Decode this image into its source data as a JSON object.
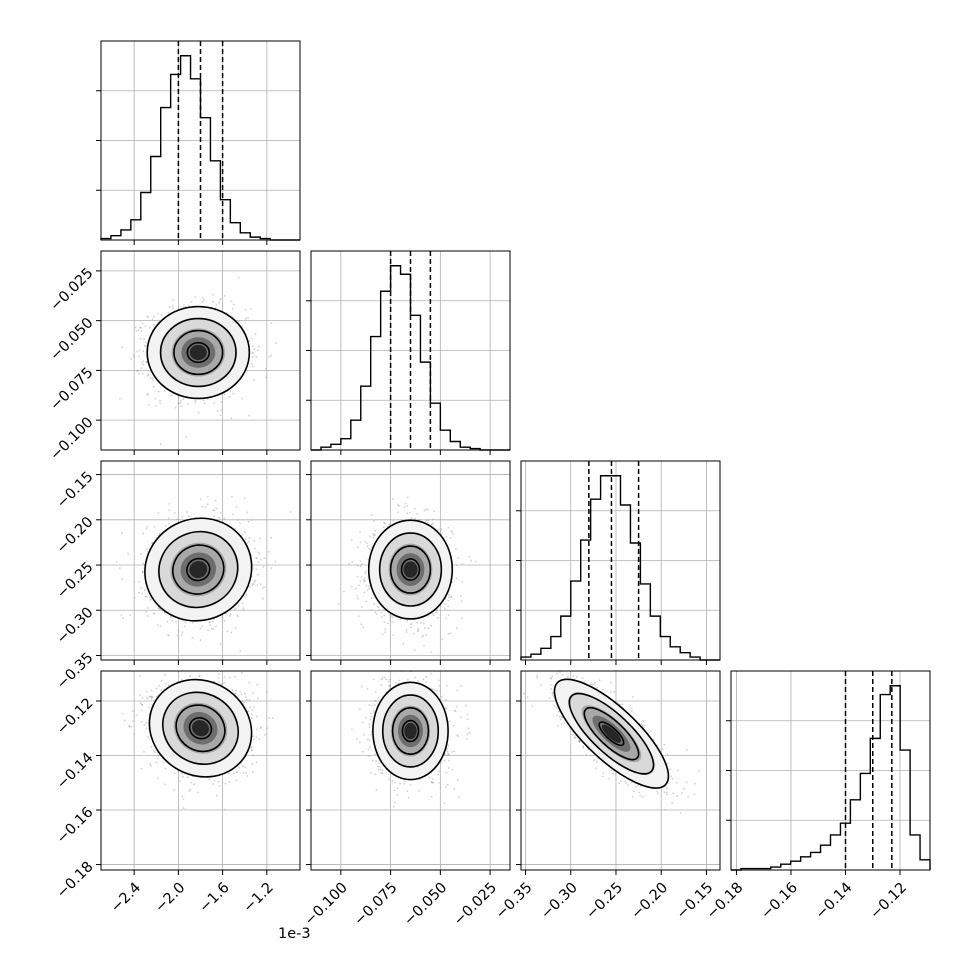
{
  "chart_data": {
    "type": "corner",
    "grid": true,
    "scatter_color": "#9a9a9a",
    "line_color": "#000000",
    "x_offset_label": "1e-3",
    "params": [
      {
        "range": [
          -2.7,
          -0.9
        ],
        "ticks": [
          -2.4,
          -2.0,
          -1.6,
          -1.2
        ],
        "tick_labels": [
          "−2.4",
          "−2.0",
          "−1.6",
          "−1.2"
        ],
        "quantiles": [
          -2.0,
          -1.8,
          -1.6
        ],
        "hist": [
          1,
          3,
          7,
          14,
          33,
          58,
          92,
          115,
          128,
          112,
          85,
          55,
          28,
          12,
          5,
          2,
          1,
          0,
          0,
          0
        ]
      },
      {
        "range": [
          -0.115,
          -0.015
        ],
        "ticks": [
          -0.1,
          -0.075,
          -0.05,
          -0.025
        ],
        "tick_labels": [
          "−0.100",
          "−0.075",
          "−0.050",
          "−0.025"
        ],
        "quantiles": [
          -0.075,
          -0.065,
          -0.055
        ],
        "hist": [
          0,
          2,
          4,
          8,
          21,
          45,
          80,
          112,
          130,
          124,
          95,
          62,
          33,
          14,
          6,
          2,
          1,
          0,
          0,
          0
        ]
      },
      {
        "range": [
          -0.355,
          -0.135
        ],
        "ticks": [
          -0.35,
          -0.3,
          -0.25,
          -0.2,
          -0.15
        ],
        "tick_labels": [
          "−0.35",
          "−0.30",
          "−0.25",
          "−0.20",
          "−0.15"
        ],
        "quantiles": [
          -0.28,
          -0.255,
          -0.225
        ],
        "hist": [
          2,
          4,
          8,
          16,
          30,
          54,
          82,
          110,
          126,
          126,
          106,
          80,
          52,
          30,
          16,
          9,
          5,
          2,
          0,
          0
        ]
      },
      {
        "range": [
          -0.182,
          -0.109
        ],
        "ticks": [
          -0.18,
          -0.16,
          -0.14,
          -0.12
        ],
        "tick_labels": [
          "−0.18",
          "−0.16",
          "−0.14",
          "−0.12"
        ],
        "quantiles": [
          -0.14,
          -0.13,
          -0.123
        ],
        "hist": [
          0,
          1,
          1,
          1,
          2,
          4,
          6,
          9,
          12,
          17,
          24,
          32,
          48,
          66,
          90,
          120,
          126,
          82,
          24,
          7
        ]
      }
    ],
    "pairs": [
      {
        "row": 1,
        "col": 0,
        "mean": [
          -1.82,
          -0.066
        ],
        "sd": [
          0.22,
          0.011
        ],
        "rho": 0.0
      },
      {
        "row": 2,
        "col": 0,
        "mean": [
          -1.82,
          -0.255
        ],
        "sd": [
          0.23,
          0.027
        ],
        "rho": 0.05
      },
      {
        "row": 2,
        "col": 1,
        "mean": [
          -0.065,
          -0.255
        ],
        "sd": [
          0.01,
          0.026
        ],
        "rho": 0.0
      },
      {
        "row": 3,
        "col": 0,
        "mean": [
          -1.8,
          -0.13
        ],
        "sd": [
          0.22,
          0.0085
        ],
        "rho": -0.1
      },
      {
        "row": 3,
        "col": 1,
        "mean": [
          -0.065,
          -0.131
        ],
        "sd": [
          0.009,
          0.0085
        ],
        "rho": 0.0
      },
      {
        "row": 3,
        "col": 2,
        "mean": [
          -0.255,
          -0.132
        ],
        "sd": [
          0.03,
          0.0095
        ],
        "rho": -0.78
      }
    ]
  }
}
